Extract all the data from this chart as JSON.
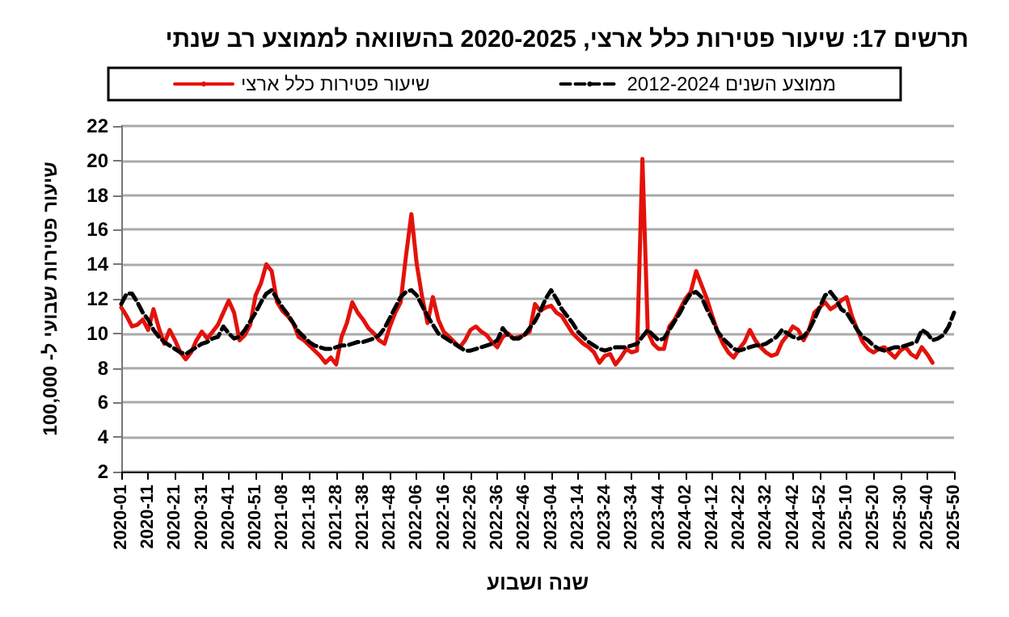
{
  "chart_data": {
    "type": "line",
    "title": "תרשים 17: שיעור פטירות כלל ארצי, 2020-2025 בהשוואה לממוצע רב שנתי",
    "xlabel": "שנה ושבוע",
    "ylabel": "שיעור פטירות שבועי ל- 100,000",
    "categories": [
      "2020-01",
      null,
      null,
      null,
      null,
      "2020-11",
      null,
      null,
      null,
      null,
      "2020-21",
      null,
      null,
      null,
      null,
      "2020-31",
      null,
      null,
      null,
      null,
      "2020-41",
      null,
      null,
      null,
      null,
      "2020-51",
      null,
      null,
      null,
      null,
      "2021-08",
      null,
      null,
      null,
      null,
      "2021-18",
      null,
      null,
      null,
      null,
      "2021-28",
      null,
      null,
      null,
      null,
      "2021-38",
      null,
      null,
      null,
      null,
      "2021-48",
      null,
      null,
      null,
      null,
      "2022-06",
      null,
      null,
      null,
      null,
      "2022-16",
      null,
      null,
      null,
      null,
      "2022-26",
      null,
      null,
      null,
      null,
      "2022-36",
      null,
      null,
      null,
      null,
      "2022-46",
      null,
      null,
      null,
      null,
      "2023-04",
      null,
      null,
      null,
      null,
      "2023-14",
      null,
      null,
      null,
      null,
      "2023-24",
      null,
      null,
      null,
      null,
      "2023-34",
      null,
      null,
      null,
      null,
      "2023-44",
      null,
      null,
      null,
      null,
      "2024-02",
      null,
      null,
      null,
      null,
      "2024-12",
      null,
      null,
      null,
      null,
      "2024-22",
      null,
      null,
      null,
      null,
      "2024-32",
      null,
      null,
      null,
      null,
      "2024-42",
      null,
      null,
      null,
      null,
      "2024-52",
      null,
      null,
      null,
      null,
      "2025-10",
      null,
      null,
      null,
      null,
      "2025-20",
      null,
      null,
      null,
      null,
      "2025-30",
      null,
      null,
      null,
      null,
      "2025-40",
      null,
      null,
      null,
      null,
      "2025-50"
    ],
    "series": [
      {
        "name": "שיעור פטירות כלל ארצי",
        "color": "#e3120b",
        "line_style": "solid",
        "values": [
          11.5,
          11.0,
          10.4,
          10.5,
          10.8,
          10.2,
          11.4,
          10.3,
          9.4,
          10.2,
          9.6,
          8.9,
          8.5,
          8.9,
          9.6,
          10.1,
          9.7,
          10.1,
          10.5,
          11.2,
          11.9,
          11.2,
          9.6,
          9.9,
          10.5,
          12.2,
          12.9,
          14.0,
          13.6,
          11.8,
          11.3,
          11.0,
          10.6,
          9.8,
          9.6,
          9.3,
          9.0,
          8.7,
          8.3,
          8.6,
          8.2,
          9.8,
          10.6,
          11.8,
          11.2,
          10.8,
          10.3,
          10.0,
          9.6,
          9.4,
          10.4,
          11.2,
          11.8,
          14.5,
          16.9,
          14.0,
          12.1,
          10.6,
          12.1,
          10.8,
          10.1,
          9.8,
          9.5,
          9.2,
          9.6,
          10.2,
          10.4,
          10.1,
          9.9,
          9.5,
          9.2,
          9.8,
          10.0,
          9.7,
          9.8,
          9.9,
          10.1,
          11.7,
          11.3,
          11.5,
          11.6,
          11.2,
          11.0,
          10.5,
          10.0,
          9.7,
          9.4,
          9.2,
          8.9,
          8.3,
          8.7,
          8.8,
          8.2,
          8.6,
          9.1,
          8.9,
          9.0,
          20.1,
          10.1,
          9.4,
          9.1,
          9.1,
          10.4,
          10.8,
          11.4,
          12.0,
          12.4,
          13.6,
          12.8,
          12.0,
          11.0,
          10.1,
          9.4,
          8.9,
          8.6,
          9.1,
          9.5,
          10.2,
          9.6,
          9.2,
          8.9,
          8.7,
          8.8,
          9.5,
          9.9,
          10.4,
          10.2,
          9.6,
          10.2,
          11.2,
          11.5,
          11.8,
          11.4,
          11.6,
          11.9,
          12.1,
          11.0,
          10.2,
          9.5,
          9.1,
          8.9,
          9.1,
          9.2,
          8.9,
          8.6,
          9.0,
          9.2,
          8.8,
          8.6,
          9.2,
          8.8,
          8.3,
          null,
          null,
          null,
          null
        ]
      },
      {
        "name": "ממוצע השנים 2012-2024",
        "color": "#000000",
        "line_style": "dashed",
        "values": [
          11.7,
          12.3,
          12.3,
          11.8,
          11.2,
          10.8,
          10.2,
          9.8,
          9.5,
          9.3,
          9.1,
          8.9,
          8.8,
          9.0,
          9.2,
          9.4,
          9.5,
          9.7,
          9.8,
          10.4,
          10.0,
          9.7,
          9.8,
          10.2,
          10.7,
          11.2,
          11.8,
          12.3,
          12.5,
          12.0,
          11.5,
          11.1,
          10.6,
          10.1,
          9.8,
          9.5,
          9.3,
          9.2,
          9.1,
          9.1,
          9.2,
          9.3,
          9.3,
          9.4,
          9.5,
          9.5,
          9.6,
          9.7,
          9.9,
          10.3,
          10.9,
          11.5,
          12.1,
          12.4,
          12.5,
          12.2,
          11.6,
          11.0,
          10.5,
          10.0,
          9.8,
          9.6,
          9.4,
          9.2,
          9.0,
          9.0,
          9.1,
          9.2,
          9.3,
          9.4,
          9.6,
          10.3,
          9.9,
          9.7,
          9.7,
          9.9,
          10.3,
          10.7,
          11.3,
          12.0,
          12.5,
          12.0,
          11.4,
          11.0,
          10.6,
          10.1,
          9.8,
          9.5,
          9.3,
          9.1,
          9.0,
          9.1,
          9.2,
          9.2,
          9.2,
          9.3,
          9.4,
          9.8,
          10.2,
          9.9,
          9.6,
          9.7,
          10.2,
          10.7,
          11.2,
          11.8,
          12.3,
          12.4,
          12.1,
          11.4,
          10.8,
          10.1,
          9.7,
          9.4,
          9.1,
          9.0,
          9.1,
          9.2,
          9.3,
          9.3,
          9.4,
          9.6,
          9.8,
          10.2,
          10.0,
          9.8,
          9.7,
          9.8,
          10.2,
          10.8,
          11.5,
          12.2,
          12.4,
          12.0,
          11.4,
          11.2,
          10.7,
          10.2,
          9.8,
          9.6,
          9.3,
          9.1,
          9.0,
          9.1,
          9.2,
          9.2,
          9.3,
          9.4,
          9.5,
          10.2,
          10.0,
          9.6,
          9.7,
          9.9,
          10.4,
          11.2
        ]
      }
    ],
    "ylim": [
      2,
      22
    ],
    "yticks": [
      2,
      4,
      6,
      8,
      10,
      12,
      14,
      16,
      18,
      20,
      22
    ],
    "grid": "y",
    "legend": "top",
    "marker": "none"
  }
}
